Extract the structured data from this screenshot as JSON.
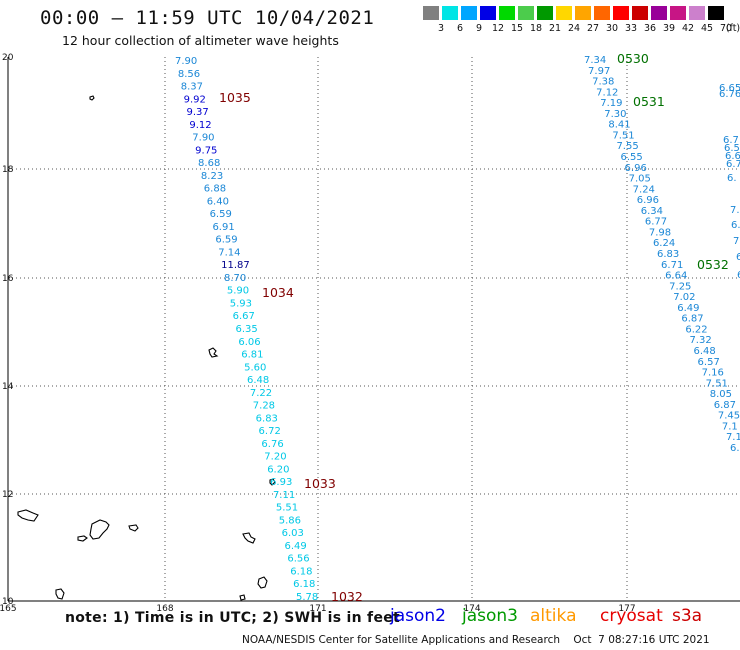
{
  "header": {
    "title": "00:00 – 11:59 UTC 10/04/2021",
    "subtitle": "12 hour collection of altimeter wave heights"
  },
  "colorbar": {
    "unit_label": "(ft)",
    "colors": [
      "#808080",
      "#00e5e5",
      "#00a6ff",
      "#0000e6",
      "#00d900",
      "#4ccc4c",
      "#009900",
      "#ffd700",
      "#ffa500",
      "#ff6600",
      "#ff0000",
      "#cc0000",
      "#990099",
      "#c71585",
      "#cc80cc",
      "#000000"
    ],
    "labels": [
      "3",
      "6",
      "9",
      "12",
      "15",
      "18",
      "21",
      "24",
      "27",
      "30",
      "33",
      "36",
      "39",
      "42",
      "45",
      "70"
    ]
  },
  "axes": {
    "lon_labels": [
      "165",
      "168",
      "171",
      "174",
      "177"
    ],
    "lat_labels": [
      "20",
      "18",
      "16",
      "14",
      "12",
      "10"
    ]
  },
  "passes": {
    "track1_values": [
      "7.90",
      "8.56",
      "8.37",
      "9.92",
      "9.37",
      "9.12",
      "7.90",
      "9.75",
      "8.68",
      "8.23",
      "6.88",
      "6.40",
      "6.59",
      "6.91",
      "6.59",
      "7.14",
      "11.87",
      "8.70",
      "5.90",
      "5.93",
      "6.67",
      "6.35",
      "6.06",
      "6.81",
      "5.60",
      "6.48",
      "7.22",
      "7.28",
      "6.83",
      "6.72",
      "6.76",
      "7.20",
      "6.20",
      "6.93",
      "7.11",
      "5.51",
      "5.86",
      "6.03",
      "6.49",
      "6.56",
      "6.18",
      "6.18",
      "5.78"
    ],
    "track1_colors": [
      "#1b87d6",
      "#1b87d6",
      "#1b87d6",
      "#0000d0",
      "#0000d0",
      "#0000d0",
      "#1b87d6",
      "#0000d0",
      "#1b87d6",
      "#1b87d6",
      "#1b87d6",
      "#1b87d6",
      "#1b87d6",
      "#1b87d6",
      "#1b87d6",
      "#1b87d6",
      "#00008b",
      "#1b87d6",
      "#00c8e6",
      "#00c8e6",
      "#00c8e6",
      "#00c8e6",
      "#00c8e6",
      "#00c8e6",
      "#00c8e6",
      "#00c8e6",
      "#00c8e6",
      "#00c8e6",
      "#00c8e6",
      "#00c8e6",
      "#00c8e6",
      "#00c8e6",
      "#00c8e6",
      "#00c8e6",
      "#00c8e6",
      "#00c8e6",
      "#00c8e6",
      "#00c8e6",
      "#00c8e6",
      "#00c8e6",
      "#00c8e6",
      "#00c8e6",
      "#00c8e6"
    ],
    "track2_values": [
      "7.34",
      "7.97",
      "7.38",
      "7.12",
      "7.19",
      "7.30",
      "8.41",
      "7.51",
      "7.55",
      "6.55",
      "6.96",
      "7.05",
      "7.24",
      "6.96",
      "6.34",
      "6.77",
      "7.98",
      "6.24",
      "6.83",
      "6.71",
      "6.64",
      "7.25",
      "7.02",
      "6.49",
      "6.87",
      "6.22",
      "7.32",
      "6.48",
      "6.57",
      "7.16",
      "7.51",
      "8.05",
      "6.87",
      "7.45",
      "7.1",
      "7.1",
      "6."
    ],
    "track3_values": [
      "6.65",
      "6.76",
      "6.7",
      "6.5",
      "6.6",
      "6.7",
      "6.",
      "7.",
      "6.",
      "7.",
      "6.",
      "6"
    ],
    "time_labels": [
      {
        "text": "1035",
        "color": "#800000"
      },
      {
        "text": "1034",
        "color": "#800000"
      },
      {
        "text": "1033",
        "color": "#800000"
      },
      {
        "text": "1032",
        "color": "#800000"
      },
      {
        "text": "0530",
        "color": "#007000"
      },
      {
        "text": "0531",
        "color": "#007000"
      },
      {
        "text": "0532",
        "color": "#007000"
      }
    ]
  },
  "footer": {
    "note": "note: 1) Time is in UTC; 2) SWH is in feet",
    "satellites": [
      {
        "name": "jason2",
        "color": "#0000e6"
      },
      {
        "name": "jason3",
        "color": "#009900"
      },
      {
        "name": "altika",
        "color": "#ff9900"
      },
      {
        "name": "cryosat",
        "color": "#e60000"
      },
      {
        "name": "s3a",
        "color": "#cc0000"
      }
    ],
    "credit": "NOAA/NESDIS Center for Satellite Applications and Research    Oct  7 08:27:16 UTC 2021"
  }
}
